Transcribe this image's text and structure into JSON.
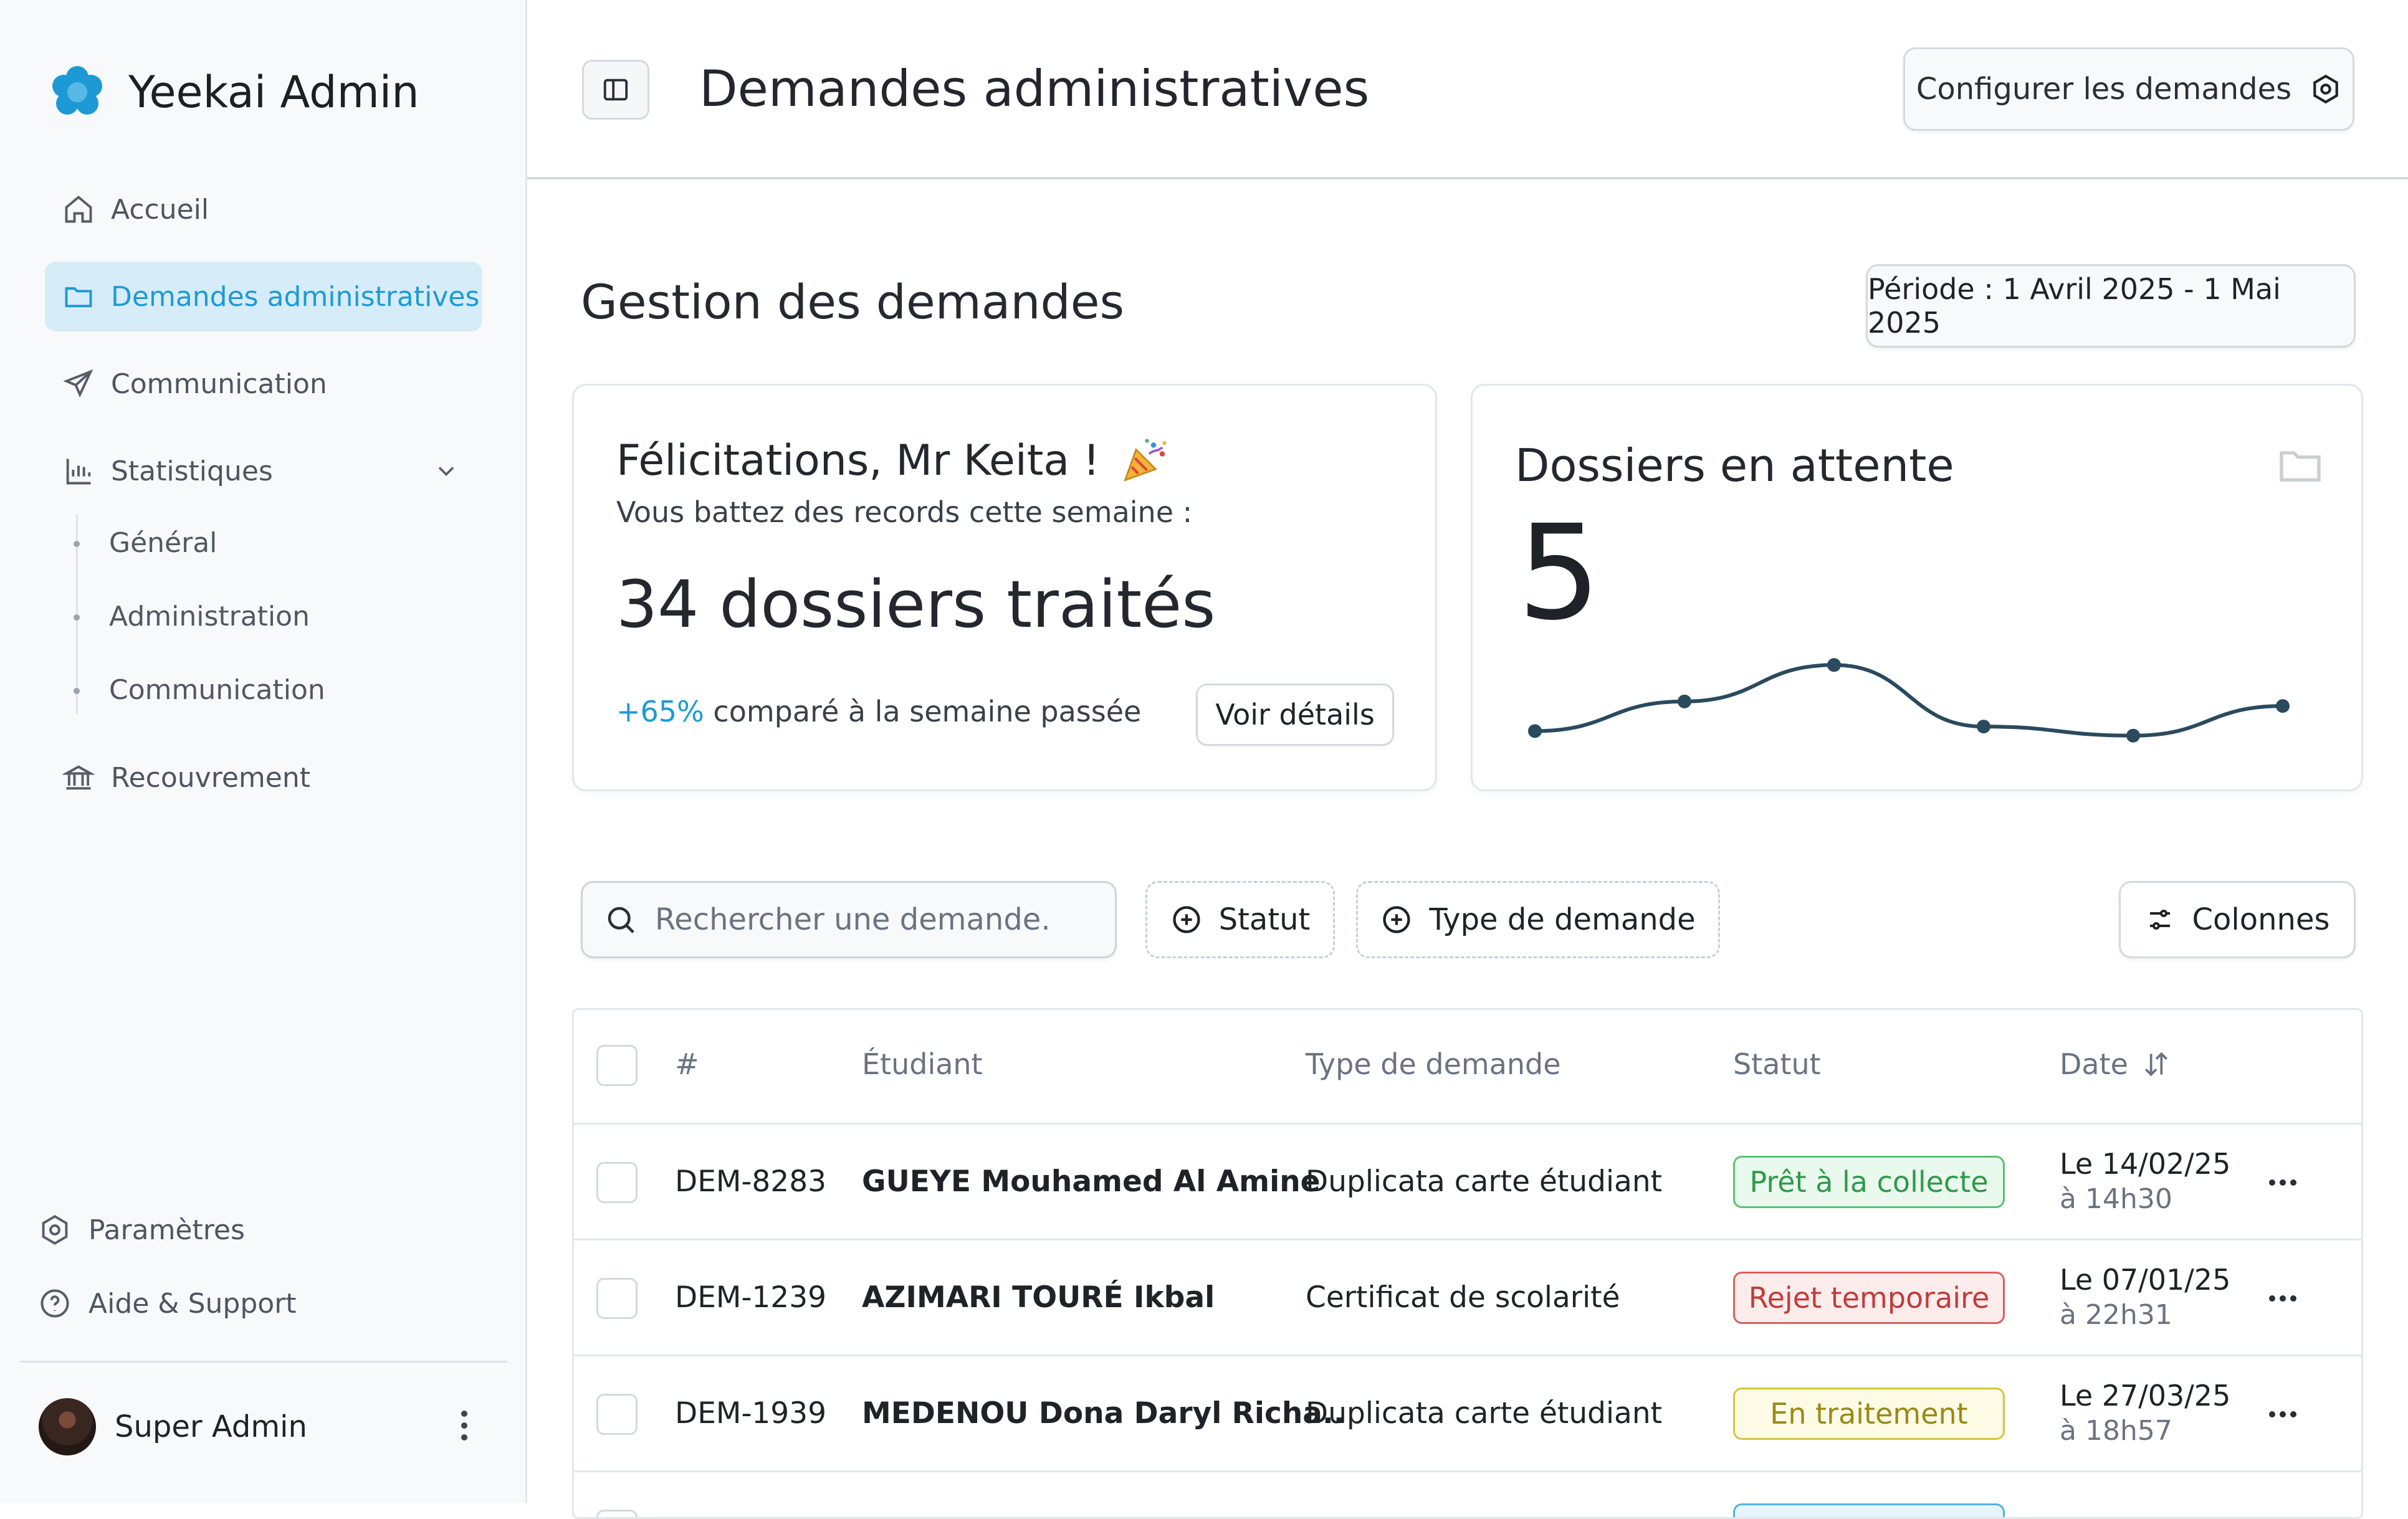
{
  "brand": {
    "name": "Yeekai Admin",
    "logo_color": "#1d9ad6"
  },
  "sidebar": {
    "items": [
      {
        "label": "Accueil",
        "icon": "home-icon"
      },
      {
        "label": "Demandes administratives",
        "icon": "folder-icon",
        "active": true
      },
      {
        "label": "Communication",
        "icon": "send-icon"
      },
      {
        "label": "Statistiques",
        "icon": "bar-chart-icon"
      },
      {
        "label": "Recouvrement",
        "icon": "bank-icon"
      }
    ],
    "stats_subitems": [
      "Général",
      "Administration",
      "Communication"
    ],
    "bottom": [
      {
        "label": "Paramètres",
        "icon": "gear-icon"
      },
      {
        "label": "Aide & Support",
        "icon": "help-icon"
      }
    ],
    "user": {
      "name": "Super Admin"
    }
  },
  "header": {
    "title": "Demandes administratives",
    "config_button": "Configurer les demandes"
  },
  "main": {
    "section_title": "Gestion des demandes",
    "period": "Période : 1 Avril 2025 - 1 Mai 2025",
    "congrats_card": {
      "title": "Félicitations, Mr Keita !",
      "subtitle": "Vous battez des records cette semaine :",
      "big_text": "34 dossiers traités",
      "change": "+65%",
      "change_text": " comparé à la semaine passée",
      "details_button": "Voir détails",
      "accent": "#1d9ad6"
    },
    "pending_card": {
      "title": "Dossiers en attente",
      "value": "5",
      "sparkline": [
        2.1,
        3.4,
        5.0,
        2.3,
        1.9,
        3.2
      ],
      "line_color": "#2a4a5e"
    },
    "toolbar": {
      "search_placeholder": "Rechercher une demande..",
      "filter_status": "Statut",
      "filter_type": "Type de demande",
      "columns_button": "Colonnes"
    },
    "table": {
      "headers": {
        "id": "#",
        "student": "Étudiant",
        "type": "Type de demande",
        "status": "Statut",
        "date": "Date"
      },
      "rows": [
        {
          "id": "DEM-8283",
          "student": "GUEYE Mouhamed Al Amine",
          "type": "Duplicata carte étudiant",
          "status": "Prêt à la collecte",
          "status_color": "green",
          "date": "Le 14/02/25",
          "time": "à 14h30"
        },
        {
          "id": "DEM-1239",
          "student": "AZIMARI TOURÉ Ikbal",
          "type": "Certificat de scolarité",
          "status": "Rejet temporaire",
          "status_color": "red",
          "date": "Le 07/01/25",
          "time": "à 22h31"
        },
        {
          "id": "DEM-1939",
          "student": "MEDENOU Dona Daryl Richa..",
          "type": "Duplicata carte étudiant",
          "status": "En traitement",
          "status_color": "yellow",
          "date": "Le 27/03/25",
          "time": "à 18h57"
        }
      ]
    }
  }
}
